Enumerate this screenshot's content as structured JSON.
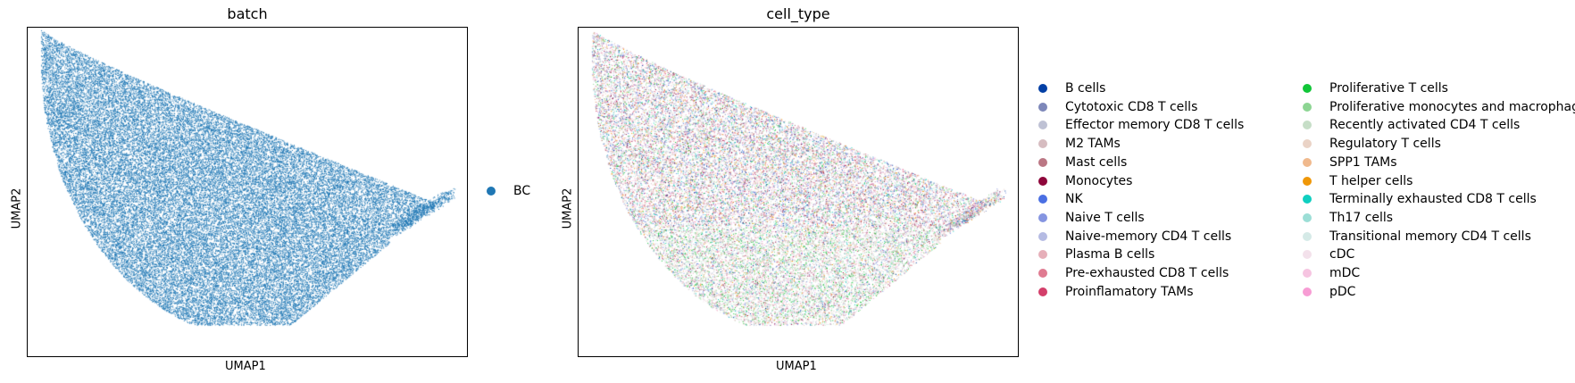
{
  "chart_data": [
    {
      "type": "scatter",
      "title": "batch",
      "xlabel": "UMAP1",
      "ylabel": "UMAP2",
      "legend_position": "right",
      "ticks": "none",
      "legend": [
        {
          "label": "BC",
          "color": "#1f77b4"
        }
      ]
    },
    {
      "type": "scatter",
      "title": "cell_type",
      "xlabel": "UMAP1",
      "ylabel": "UMAP2",
      "legend_position": "right",
      "ticks": "none",
      "legend": [
        {
          "label": "B cells",
          "color": "#023fa5"
        },
        {
          "label": "Cytotoxic CD8 T cells",
          "color": "#7d87b9"
        },
        {
          "label": "Effector memory CD8 T cells",
          "color": "#bec1d4"
        },
        {
          "label": "M2 TAMs",
          "color": "#d6bcc0"
        },
        {
          "label": "Mast cells",
          "color": "#bb7784"
        },
        {
          "label": "Monocytes",
          "color": "#8e063b"
        },
        {
          "label": "NK",
          "color": "#4a6fe3"
        },
        {
          "label": "Naive T cells",
          "color": "#8595e1"
        },
        {
          "label": "Naive-memory CD4 T cells",
          "color": "#b5bbe3"
        },
        {
          "label": "Plasma B cells",
          "color": "#e6afb9"
        },
        {
          "label": "Pre-exhausted CD8 T cells",
          "color": "#e07b91"
        },
        {
          "label": "Proinflamatory TAMs",
          "color": "#d33f6a"
        },
        {
          "label": "Proliferative T cells",
          "color": "#11c638"
        },
        {
          "label": "Proliferative monocytes and macrophages",
          "color": "#8dd593"
        },
        {
          "label": "Recently activated CD4 T cells",
          "color": "#c6dec7"
        },
        {
          "label": "Regulatory T cells",
          "color": "#ead3c6"
        },
        {
          "label": "SPP1 TAMs",
          "color": "#f0b98d"
        },
        {
          "label": "T helper cells",
          "color": "#ef9708"
        },
        {
          "label": "Terminally exhausted CD8 T cells",
          "color": "#0fcfc0"
        },
        {
          "label": "Th17 cells",
          "color": "#9cded6"
        },
        {
          "label": "Transitional memory CD4 T cells",
          "color": "#d5eae7"
        },
        {
          "label": "cDC",
          "color": "#f3e1eb"
        },
        {
          "label": "mDC",
          "color": "#f6c4e1"
        },
        {
          "label": "pDC",
          "color": "#f79cd4"
        }
      ]
    }
  ]
}
